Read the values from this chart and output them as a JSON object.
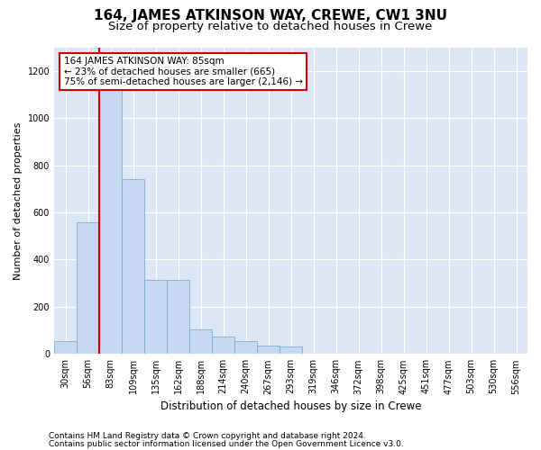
{
  "title": "164, JAMES ATKINSON WAY, CREWE, CW1 3NU",
  "subtitle": "Size of property relative to detached houses in Crewe",
  "xlabel": "Distribution of detached houses by size in Crewe",
  "ylabel": "Number of detached properties",
  "footer_line1": "Contains HM Land Registry data © Crown copyright and database right 2024.",
  "footer_line2": "Contains public sector information licensed under the Open Government Licence v3.0.",
  "annotation_line1": "164 JAMES ATKINSON WAY: 85sqm",
  "annotation_line2": "← 23% of detached houses are smaller (665)",
  "annotation_line3": "75% of semi-detached houses are larger (2,146) →",
  "bar_color": "#c5d8ef",
  "bar_edge_color": "#7aafd4",
  "background_color": "#dce6f5",
  "grid_color": "#ffffff",
  "vline_color": "#cc0000",
  "vline_bin_index": 2,
  "annotation_box_facecolor": "#ffffff",
  "annotation_box_edgecolor": "#cc0000",
  "categories": [
    "30sqm",
    "56sqm",
    "83sqm",
    "109sqm",
    "135sqm",
    "162sqm",
    "188sqm",
    "214sqm",
    "240sqm",
    "267sqm",
    "293sqm",
    "319sqm",
    "346sqm",
    "372sqm",
    "398sqm",
    "425sqm",
    "451sqm",
    "477sqm",
    "503sqm",
    "530sqm",
    "556sqm"
  ],
  "values": [
    55,
    560,
    1210,
    740,
    315,
    315,
    105,
    75,
    55,
    35,
    30,
    0,
    0,
    0,
    0,
    0,
    0,
    0,
    0,
    0,
    0
  ],
  "ylim": [
    0,
    1300
  ],
  "yticks": [
    0,
    200,
    400,
    600,
    800,
    1000,
    1200
  ],
  "title_fontsize": 11,
  "subtitle_fontsize": 9.5,
  "ylabel_fontsize": 8,
  "xlabel_fontsize": 8.5,
  "tick_fontsize": 7,
  "annotation_fontsize": 7.5,
  "footer_fontsize": 6.5
}
